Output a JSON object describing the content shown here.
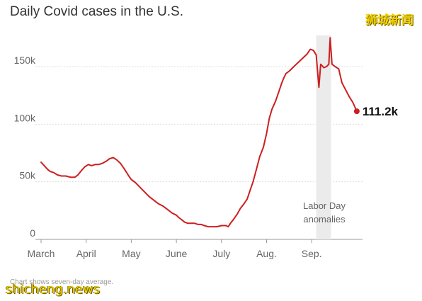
{
  "header": {
    "title": "Daily Covid cases in the U.S."
  },
  "watermarks": {
    "top": "狮城新闻",
    "bottom": "shicheng.news"
  },
  "footer": {
    "note": "Chart shows seven-day average."
  },
  "colors": {
    "line": "#cc1f1f",
    "annotation_band": "#ebebeb",
    "grid": "#dddddd"
  },
  "chart_data": {
    "type": "line",
    "title": "Daily Covid cases in the U.S.",
    "xlabel": "",
    "ylabel": "",
    "x_tick_labels": [
      "March",
      "April",
      "May",
      "June",
      "July",
      "Aug.",
      "Sep."
    ],
    "y_tick_labels": [
      "0",
      "50k",
      "100k",
      "150k"
    ],
    "y_ticks": [
      0,
      50000,
      100000,
      150000
    ],
    "ylim": [
      0,
      175000
    ],
    "grid": "horizontal",
    "annotation": {
      "text_line1": "Labor Day",
      "text_line2": "anomalies",
      "x_start": 6.1,
      "x_end": 6.43
    },
    "end_label": "111.2k",
    "series": [
      {
        "values": [
          [
            0.0,
            67000
          ],
          [
            0.07,
            64000
          ],
          [
            0.14,
            61000
          ],
          [
            0.2,
            59000
          ],
          [
            0.28,
            58000
          ],
          [
            0.36,
            56000
          ],
          [
            0.45,
            55000
          ],
          [
            0.55,
            55000
          ],
          [
            0.65,
            54000
          ],
          [
            0.75,
            54000
          ],
          [
            0.82,
            56000
          ],
          [
            0.9,
            60000
          ],
          [
            0.97,
            63000
          ],
          [
            1.05,
            65000
          ],
          [
            1.12,
            64000
          ],
          [
            1.2,
            65000
          ],
          [
            1.28,
            65000
          ],
          [
            1.36,
            66000
          ],
          [
            1.45,
            68000
          ],
          [
            1.52,
            70000
          ],
          [
            1.6,
            71000
          ],
          [
            1.68,
            69000
          ],
          [
            1.76,
            66000
          ],
          [
            1.85,
            61000
          ],
          [
            1.93,
            56000
          ],
          [
            2.0,
            52000
          ],
          [
            2.1,
            49000
          ],
          [
            2.2,
            45000
          ],
          [
            2.3,
            41000
          ],
          [
            2.4,
            37000
          ],
          [
            2.5,
            34000
          ],
          [
            2.6,
            31000
          ],
          [
            2.7,
            29000
          ],
          [
            2.8,
            26000
          ],
          [
            2.9,
            23000
          ],
          [
            3.0,
            21000
          ],
          [
            3.05,
            19000
          ],
          [
            3.12,
            17000
          ],
          [
            3.18,
            15000
          ],
          [
            3.25,
            14000
          ],
          [
            3.32,
            14000
          ],
          [
            3.4,
            14000
          ],
          [
            3.48,
            13000
          ],
          [
            3.55,
            13000
          ],
          [
            3.62,
            12000
          ],
          [
            3.7,
            11000
          ],
          [
            3.8,
            11000
          ],
          [
            3.9,
            11000
          ],
          [
            4.0,
            12000
          ],
          [
            4.1,
            12000
          ],
          [
            4.15,
            11000
          ],
          [
            4.2,
            14000
          ],
          [
            4.28,
            18000
          ],
          [
            4.35,
            22000
          ],
          [
            4.42,
            27000
          ],
          [
            4.5,
            31000
          ],
          [
            4.57,
            35000
          ],
          [
            4.63,
            42000
          ],
          [
            4.7,
            50000
          ],
          [
            4.77,
            60000
          ],
          [
            4.85,
            72000
          ],
          [
            4.93,
            80000
          ],
          [
            5.0,
            92000
          ],
          [
            5.06,
            105000
          ],
          [
            5.12,
            113000
          ],
          [
            5.2,
            120000
          ],
          [
            5.27,
            128000
          ],
          [
            5.33,
            135000
          ],
          [
            5.38,
            140000
          ],
          [
            5.43,
            144000
          ],
          [
            5.5,
            146000
          ],
          [
            5.58,
            149000
          ],
          [
            5.66,
            152000
          ],
          [
            5.74,
            155000
          ],
          [
            5.82,
            158000
          ],
          [
            5.9,
            161000
          ],
          [
            5.97,
            165000
          ],
          [
            6.04,
            164000
          ],
          [
            6.1,
            160000
          ],
          [
            6.16,
            132000
          ],
          [
            6.2,
            152000
          ],
          [
            6.27,
            149000
          ],
          [
            6.33,
            150000
          ],
          [
            6.38,
            152000
          ],
          [
            6.41,
            175000
          ],
          [
            6.45,
            152000
          ],
          [
            6.52,
            150000
          ],
          [
            6.6,
            148000
          ],
          [
            6.67,
            136000
          ],
          [
            6.75,
            130000
          ],
          [
            6.83,
            124000
          ],
          [
            6.91,
            119000
          ],
          [
            7.0,
            111200
          ]
        ]
      }
    ]
  }
}
